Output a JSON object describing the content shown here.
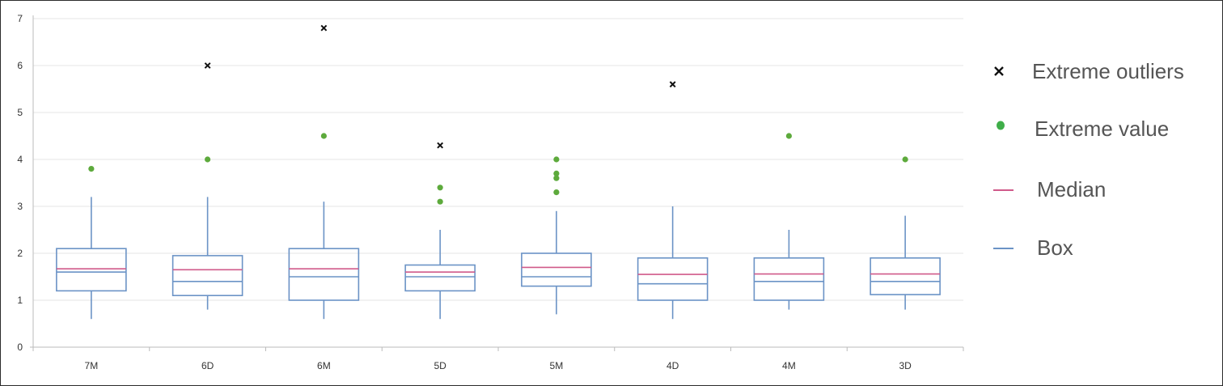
{
  "chart_data": {
    "type": "box",
    "title": "",
    "xlabel": "",
    "ylabel": "",
    "ylim": [
      0,
      7
    ],
    "yticks": [
      0,
      1,
      2,
      3,
      4,
      5,
      6,
      7
    ],
    "grid": true,
    "legend_position": "right",
    "categories": [
      "7M",
      "6D",
      "6M",
      "5D",
      "5M",
      "4D",
      "4M",
      "3D"
    ],
    "boxes": [
      {
        "category": "7M",
        "whisker_low": 0.6,
        "q1": 1.2,
        "median": 1.6,
        "mean": 1.67,
        "q3": 2.1,
        "whisker_high": 3.2,
        "extreme_values": [
          3.8
        ],
        "extreme_outliers": []
      },
      {
        "category": "6D",
        "whisker_low": 0.8,
        "q1": 1.1,
        "median": 1.4,
        "mean": 1.65,
        "q3": 1.95,
        "whisker_high": 3.2,
        "extreme_values": [
          4.0
        ],
        "extreme_outliers": [
          6.0
        ]
      },
      {
        "category": "6M",
        "whisker_low": 0.6,
        "q1": 1.0,
        "median": 1.5,
        "mean": 1.67,
        "q3": 2.1,
        "whisker_high": 3.1,
        "extreme_values": [
          4.5
        ],
        "extreme_outliers": [
          6.8
        ]
      },
      {
        "category": "5D",
        "whisker_low": 0.6,
        "q1": 1.2,
        "median": 1.5,
        "mean": 1.6,
        "q3": 1.75,
        "whisker_high": 2.5,
        "extreme_values": [
          3.1,
          3.4
        ],
        "extreme_outliers": [
          4.3
        ]
      },
      {
        "category": "5M",
        "whisker_low": 0.7,
        "q1": 1.3,
        "median": 1.5,
        "mean": 1.7,
        "q3": 2.0,
        "whisker_high": 2.9,
        "extreme_values": [
          3.3,
          3.6,
          3.7,
          4.0
        ],
        "extreme_outliers": []
      },
      {
        "category": "4D",
        "whisker_low": 0.6,
        "q1": 1.0,
        "median": 1.35,
        "mean": 1.55,
        "q3": 1.9,
        "whisker_high": 3.0,
        "extreme_values": [],
        "extreme_outliers": [
          5.6
        ]
      },
      {
        "category": "4M",
        "whisker_low": 0.8,
        "q1": 1.0,
        "median": 1.4,
        "mean": 1.56,
        "q3": 1.9,
        "whisker_high": 2.5,
        "extreme_values": [
          4.5
        ],
        "extreme_outliers": []
      },
      {
        "category": "3D",
        "whisker_low": 0.8,
        "q1": 1.12,
        "median": 1.4,
        "mean": 1.56,
        "q3": 1.9,
        "whisker_high": 2.8,
        "extreme_values": [
          4.0
        ],
        "extreme_outliers": []
      }
    ],
    "colors": {
      "box": "#6b93c6",
      "pink_line": "#d05a8a",
      "extreme_value": "#5daa3c",
      "extreme_outlier": "#111111",
      "grid": "#e6e6e6",
      "axis": "#bbbbbb"
    }
  },
  "legend": {
    "items": [
      {
        "label": "Extreme outliers",
        "icon": "x-mark-icon"
      },
      {
        "label": "Extreme value",
        "icon": "green-dot-icon"
      },
      {
        "label": "Median",
        "icon": "pink-line-icon"
      },
      {
        "label": "Box",
        "icon": "blue-line-icon"
      }
    ]
  }
}
